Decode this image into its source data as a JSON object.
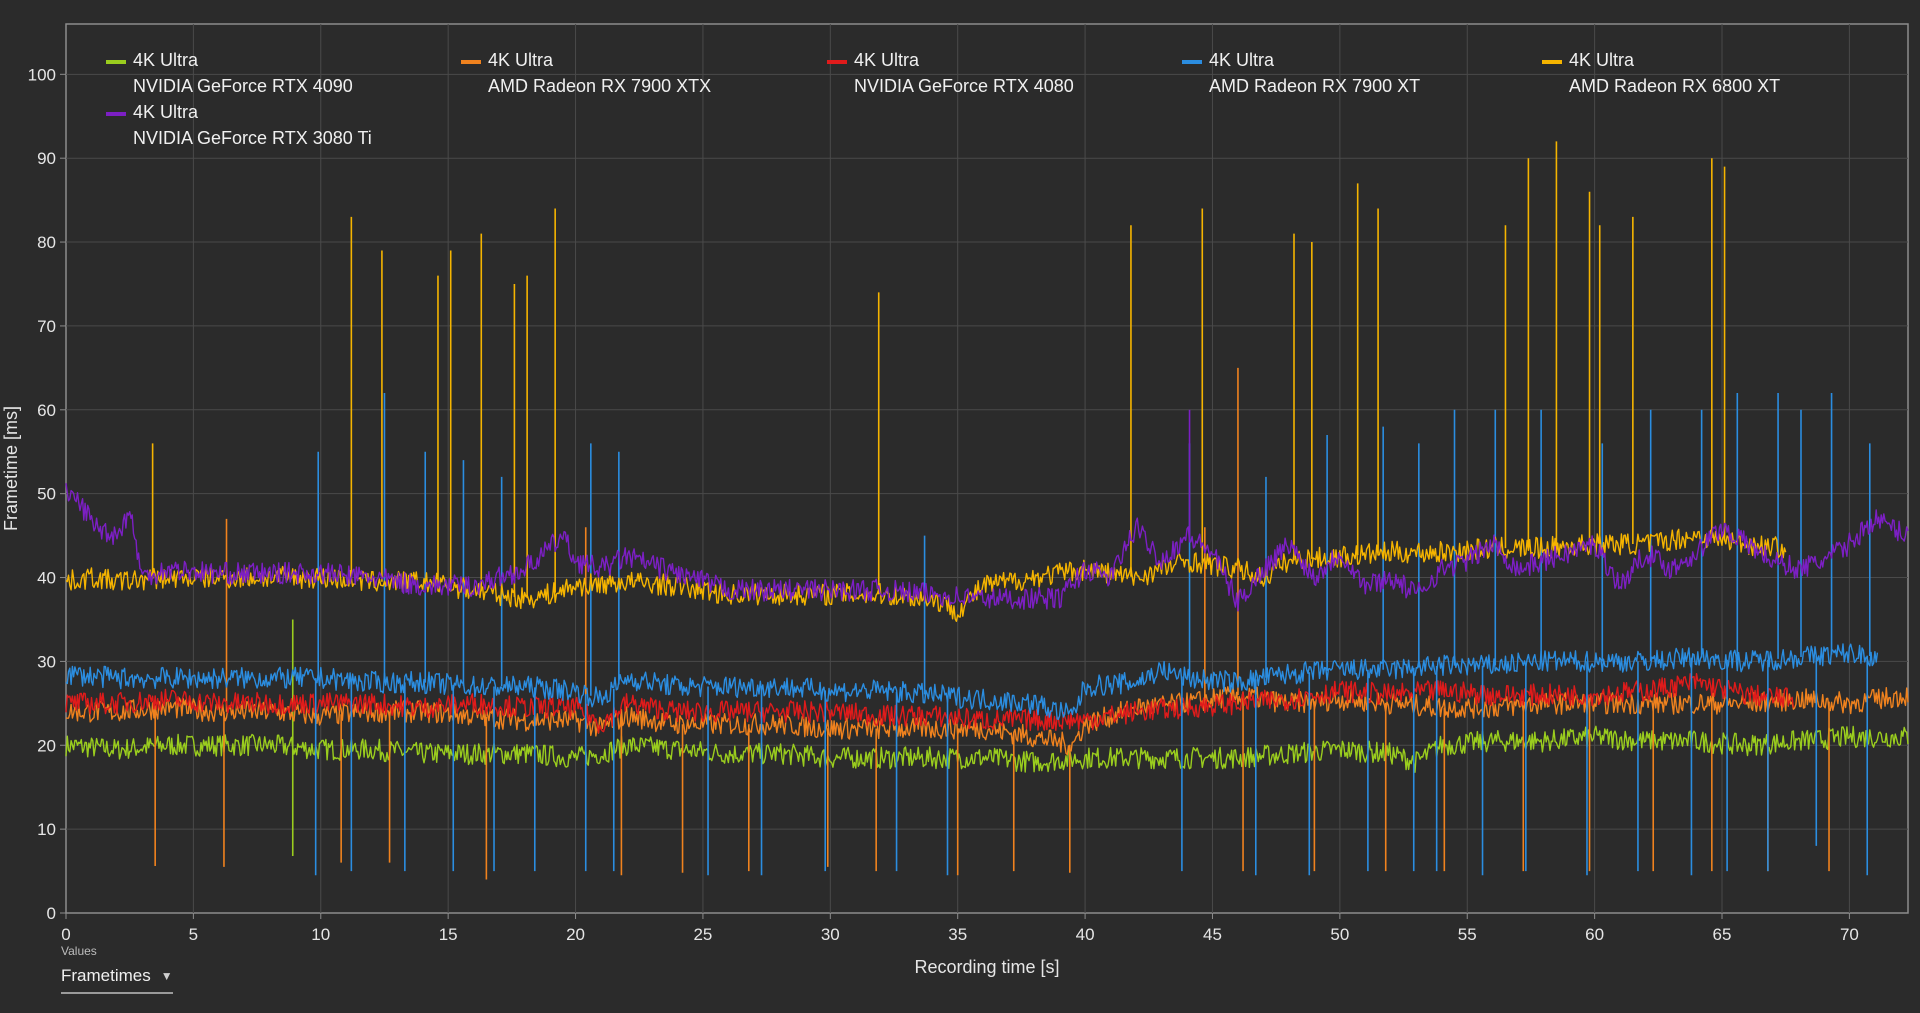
{
  "chart_data": {
    "type": "line",
    "title": "",
    "xlabel": "Recording time [s]",
    "ylabel": "Frametime [ms]",
    "xlim": [
      0,
      72.3
    ],
    "ylim": [
      0,
      106
    ],
    "x_ticks": [
      0,
      5,
      10,
      15,
      20,
      25,
      30,
      35,
      40,
      45,
      50,
      55,
      60,
      65,
      70
    ],
    "y_ticks": [
      0,
      10,
      20,
      30,
      40,
      50,
      60,
      70,
      80,
      90,
      100
    ],
    "grid": true,
    "legend_position": "top-left",
    "series": [
      {
        "name": "4K Ultra",
        "gpu": "NVIDIA GeForce RTX 4090",
        "color": "#9acd1e",
        "x": [
          0,
          2,
          4,
          6,
          8,
          10,
          12,
          14,
          16,
          18,
          20,
          21,
          22,
          24,
          26,
          28,
          30,
          32,
          34,
          36,
          38,
          40,
          42,
          44,
          46,
          48,
          50,
          52,
          53,
          54,
          56,
          58,
          60,
          62,
          64,
          66,
          68,
          70,
          72.3
        ],
        "y": [
          20,
          19.5,
          20,
          20,
          20,
          19.5,
          19.5,
          19,
          19,
          19,
          18.5,
          19,
          20,
          19.5,
          19,
          19,
          18.5,
          18.5,
          18.5,
          18.5,
          18,
          18.5,
          18.5,
          18.5,
          18.5,
          19,
          19.5,
          19,
          18,
          20,
          20.5,
          20.5,
          21,
          20.5,
          20.5,
          20,
          20.5,
          21,
          21
        ],
        "spikes": [
          [
            8.9,
            6.8
          ],
          [
            8.9,
            35
          ]
        ]
      },
      {
        "name": "4K Ultra",
        "gpu": "AMD Radeon RX 7900 XTX",
        "color": "#f0821e",
        "x": [
          0,
          2,
          4,
          6,
          8,
          10,
          12,
          14,
          16,
          18,
          20,
          21,
          22,
          24,
          26,
          28,
          30,
          32,
          34,
          36,
          38,
          39.5,
          40,
          42,
          44,
          46,
          48,
          50,
          52,
          54,
          56,
          58,
          60,
          62,
          64,
          66,
          68,
          70,
          72.3
        ],
        "y": [
          24,
          24,
          24.5,
          24,
          24,
          23.5,
          24,
          24,
          23.5,
          23,
          23,
          22,
          23.5,
          22.5,
          22.5,
          22.5,
          22,
          22,
          22,
          22,
          21,
          20,
          22.5,
          24.5,
          25,
          26,
          25,
          25.5,
          25,
          24.5,
          24.5,
          25,
          25,
          25,
          25,
          25,
          25.5,
          25,
          26
        ],
        "spikes": [
          [
            3.5,
            5.6
          ],
          [
            6.2,
            5.5
          ],
          [
            6.3,
            47
          ],
          [
            10.8,
            6
          ],
          [
            12.7,
            6
          ],
          [
            16.5,
            4
          ],
          [
            20.4,
            46
          ],
          [
            21.8,
            4.5
          ],
          [
            24.2,
            4.8
          ],
          [
            26.8,
            5
          ],
          [
            29.9,
            5.5
          ],
          [
            31.8,
            5
          ],
          [
            35,
            4.5
          ],
          [
            37.2,
            5
          ],
          [
            39.4,
            4.8
          ],
          [
            44.7,
            46
          ],
          [
            46,
            65
          ],
          [
            46.2,
            5
          ],
          [
            49,
            5
          ],
          [
            51.8,
            5
          ],
          [
            54.1,
            5
          ],
          [
            57.2,
            5
          ],
          [
            59.8,
            5
          ],
          [
            62.3,
            5
          ],
          [
            64.6,
            5
          ],
          [
            66.8,
            5
          ],
          [
            69.2,
            5
          ]
        ]
      },
      {
        "name": "4K Ultra",
        "gpu": "NVIDIA GeForce RTX 4080",
        "color": "#e01b1b",
        "x": [
          0,
          2,
          4,
          6,
          8,
          10,
          12,
          14,
          16,
          18,
          20,
          21,
          22,
          24,
          26,
          28,
          30,
          32,
          34,
          36,
          38,
          40,
          42,
          44,
          46,
          48,
          50,
          52,
          54,
          56,
          58,
          60,
          62,
          64,
          66,
          67.8
        ],
        "y": [
          25,
          25,
          25.5,
          25,
          25,
          25,
          25,
          24.5,
          25,
          24.5,
          24.5,
          22.5,
          25,
          24,
          24,
          24,
          24,
          23.5,
          23.5,
          23,
          23,
          23,
          24,
          24.5,
          25,
          25.5,
          26.5,
          26,
          26.5,
          26,
          26,
          26,
          26.5,
          27.5,
          26,
          25.5
        ],
        "spikes": []
      },
      {
        "name": "4K Ultra",
        "gpu": "AMD Radeon RX 7900 XT",
        "color": "#2b8de0",
        "x": [
          0,
          2,
          4,
          6,
          8,
          10,
          12,
          14,
          16,
          18,
          20,
          21,
          22,
          24,
          26,
          28,
          30,
          32,
          34,
          36,
          38,
          39.5,
          40,
          42,
          43,
          44,
          46,
          48,
          50,
          52,
          54,
          56,
          58,
          60,
          62,
          64,
          66,
          68,
          70,
          71.1
        ],
        "y": [
          28.5,
          28,
          28,
          28,
          28,
          28,
          27.5,
          27.5,
          27,
          27,
          26.5,
          25.5,
          28,
          27,
          27,
          27,
          26.5,
          26.5,
          26,
          25.5,
          25,
          23.5,
          27,
          27.5,
          29,
          28,
          27.5,
          28.5,
          29,
          29,
          29.5,
          29.5,
          30,
          30,
          30,
          30.5,
          30,
          30.5,
          31,
          30.5
        ],
        "spikes": [
          [
            9.8,
            4.5
          ],
          [
            9.9,
            55
          ],
          [
            11.2,
            5
          ],
          [
            12.5,
            62
          ],
          [
            13.3,
            5
          ],
          [
            14.1,
            55
          ],
          [
            15.2,
            5
          ],
          [
            15.6,
            54
          ],
          [
            16.8,
            5
          ],
          [
            17.1,
            52
          ],
          [
            18.4,
            5
          ],
          [
            20.4,
            5
          ],
          [
            20.6,
            56
          ],
          [
            21.5,
            5
          ],
          [
            21.7,
            55
          ],
          [
            25.2,
            4.5
          ],
          [
            27.3,
            4.5
          ],
          [
            29.8,
            5
          ],
          [
            32.6,
            5
          ],
          [
            33.7,
            45
          ],
          [
            34.6,
            4.5
          ],
          [
            43.8,
            5
          ],
          [
            44.1,
            56
          ],
          [
            46.7,
            4.5
          ],
          [
            47.1,
            52
          ],
          [
            48.8,
            4.5
          ],
          [
            49.5,
            57
          ],
          [
            51.1,
            5
          ],
          [
            51.7,
            58
          ],
          [
            52.9,
            5
          ],
          [
            53.1,
            56
          ],
          [
            53.8,
            5
          ],
          [
            54.5,
            60
          ],
          [
            55.6,
            4.5
          ],
          [
            56.1,
            60
          ],
          [
            57.3,
            5
          ],
          [
            57.9,
            60
          ],
          [
            59.7,
            4.5
          ],
          [
            60.3,
            56
          ],
          [
            61.7,
            5
          ],
          [
            62.2,
            60
          ],
          [
            63.8,
            4.5
          ],
          [
            64.2,
            60
          ],
          [
            65.2,
            5
          ],
          [
            65.6,
            62
          ],
          [
            66.8,
            5
          ],
          [
            67.2,
            62
          ],
          [
            68.1,
            60
          ],
          [
            68.7,
            8
          ],
          [
            69.3,
            62
          ],
          [
            70.7,
            4.5
          ],
          [
            70.8,
            56
          ]
        ]
      },
      {
        "name": "4K Ultra",
        "gpu": "AMD Radeon RX 6800 XT",
        "color": "#f5b400",
        "x": [
          0,
          1,
          2,
          4,
          6,
          8,
          10,
          12,
          14,
          16,
          18,
          19,
          20,
          22,
          24,
          26,
          28,
          30,
          32,
          34,
          35,
          36,
          38,
          40,
          42,
          44,
          46,
          47,
          48,
          50,
          52,
          54,
          56,
          58,
          60,
          62,
          64,
          66,
          67.5
        ],
        "y": [
          39.5,
          40,
          39.5,
          40,
          40,
          40,
          40,
          39.5,
          39.5,
          38.5,
          37.5,
          38,
          39,
          39.5,
          39,
          38,
          38,
          38,
          38,
          37.5,
          36,
          39,
          40,
          41,
          40,
          42,
          41,
          40,
          42,
          42.5,
          43,
          43,
          43.5,
          43.5,
          44,
          44,
          45,
          44,
          43.5
        ],
        "spikes": [
          [
            3.4,
            56
          ],
          [
            11.2,
            83
          ],
          [
            12.4,
            79
          ],
          [
            14.6,
            76
          ],
          [
            15.1,
            79
          ],
          [
            16.3,
            81
          ],
          [
            17.6,
            75
          ],
          [
            18.1,
            76
          ],
          [
            19.2,
            84
          ],
          [
            31.9,
            74
          ],
          [
            41.8,
            82
          ],
          [
            44.6,
            84
          ],
          [
            48.2,
            81
          ],
          [
            48.9,
            80
          ],
          [
            50.7,
            87
          ],
          [
            51.5,
            84
          ],
          [
            56.5,
            82
          ],
          [
            57.4,
            90
          ],
          [
            58.5,
            92
          ],
          [
            59.8,
            86
          ],
          [
            60.2,
            82
          ],
          [
            61.5,
            83
          ],
          [
            64.6,
            90
          ],
          [
            65.1,
            89
          ]
        ]
      },
      {
        "name": "4K Ultra",
        "gpu": "NVIDIA GeForce RTX 3080 Ti",
        "color": "#7c1fc4",
        "x": [
          0,
          0.5,
          1.2,
          2,
          2.5,
          3,
          4,
          6,
          8,
          10,
          12,
          14,
          16,
          17,
          18,
          18.8,
          19.5,
          20,
          21,
          22,
          24,
          26,
          28,
          30,
          32,
          34,
          36,
          38,
          39,
          40,
          41,
          42,
          43,
          44,
          45,
          46,
          47,
          48,
          49,
          50,
          51,
          52,
          53,
          54,
          55,
          56,
          57,
          58,
          59,
          60,
          61,
          62,
          63,
          64,
          65,
          66,
          67,
          68,
          69,
          70,
          71,
          72.3
        ],
        "y": [
          50,
          49,
          46,
          45,
          48,
          40,
          41,
          40.5,
          40.5,
          40.5,
          40,
          39,
          39,
          40,
          41,
          43,
          45,
          42,
          41,
          42.5,
          40.5,
          38.5,
          38.5,
          38.5,
          38.5,
          38,
          37.5,
          37.5,
          37.5,
          41,
          40,
          46,
          42,
          45,
          43,
          37,
          41,
          44,
          40,
          43,
          39,
          40,
          38,
          41,
          42,
          44,
          41,
          42,
          43,
          44,
          39,
          43,
          41,
          43,
          46,
          44,
          42,
          41,
          42,
          44,
          47,
          45
        ],
        "spikes": [
          [
            44.1,
            60
          ]
        ]
      }
    ]
  },
  "legend_entries": [
    {
      "label": "4K Ultra",
      "gpu": "NVIDIA GeForce RTX 4090",
      "color": "#9acd1e"
    },
    {
      "label": "4K Ultra",
      "gpu": "AMD Radeon RX 7900 XTX",
      "color": "#f0821e"
    },
    {
      "label": "4K Ultra",
      "gpu": "NVIDIA GeForce RTX 4080",
      "color": "#e01b1b"
    },
    {
      "label": "4K Ultra",
      "gpu": "AMD Radeon RX 7900 XT",
      "color": "#2b8de0"
    },
    {
      "label": "4K Ultra",
      "gpu": "AMD Radeon RX 6800 XT",
      "color": "#f5b400"
    },
    {
      "label": "4K Ultra",
      "gpu": "NVIDIA GeForce RTX 3080 Ti",
      "color": "#7c1fc4"
    }
  ],
  "values_control": {
    "caption": "Values",
    "selected": "Frametimes",
    "icon": "chevron-down-icon"
  },
  "colors": {
    "background": "#2b2b2b",
    "plot_border": "#8c8c8c",
    "grid": "#4a4a4a"
  }
}
